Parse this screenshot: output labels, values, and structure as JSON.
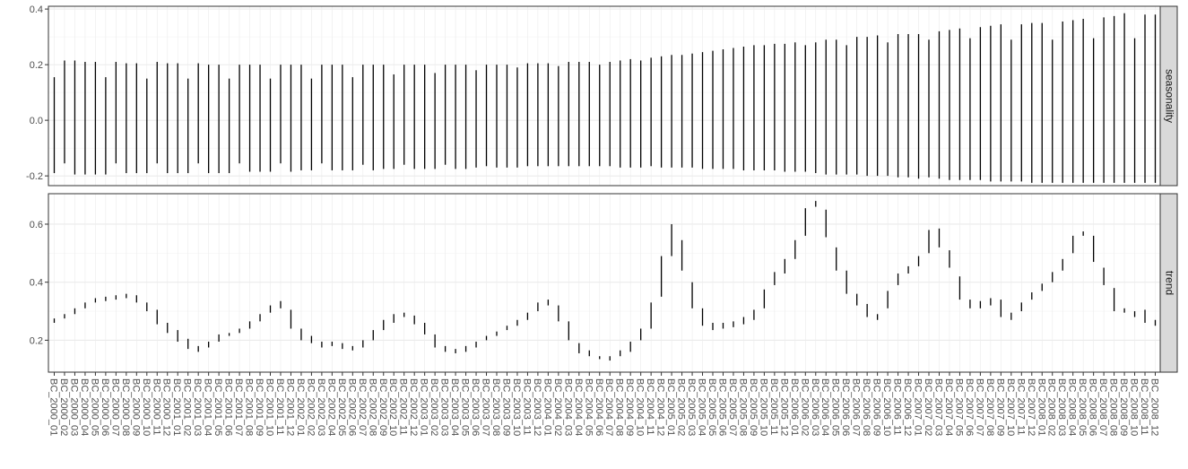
{
  "chart_data": {
    "type": "faceted-range",
    "x_tick_labels": [
      "BC_2000_01",
      "BC_2000_02",
      "BC_2000_03",
      "BC_2000_04",
      "BC_2000_05",
      "BC_2000_06",
      "BC_2000_07",
      "BC_2000_08",
      "BC_2000_09",
      "BC_2000_10",
      "BC_2000_11",
      "BC_2000_12",
      "BC_2001_01",
      "BC_2001_02",
      "BC_2001_03",
      "BC_2001_04",
      "BC_2001_05",
      "BC_2001_06",
      "BC_2001_07",
      "BC_2001_08",
      "BC_2001_09",
      "BC_2001_10",
      "BC_2001_11",
      "BC_2001_12",
      "BC_2002_01",
      "BC_2002_02",
      "BC_2002_03",
      "BC_2002_04",
      "BC_2002_05",
      "BC_2002_06",
      "BC_2002_07",
      "BC_2002_08",
      "BC_2002_09",
      "BC_2002_10",
      "BC_2002_11",
      "BC_2002_12",
      "BC_2003_01",
      "BC_2003_02",
      "BC_2003_03",
      "BC_2003_04",
      "BC_2003_05",
      "BC_2003_06",
      "BC_2003_07",
      "BC_2003_08",
      "BC_2003_09",
      "BC_2003_10",
      "BC_2003_11",
      "BC_2003_12",
      "BC_2004_01",
      "BC_2004_02",
      "BC_2004_03",
      "BC_2004_04",
      "BC_2004_05",
      "BC_2004_06",
      "BC_2004_07",
      "BC_2004_08",
      "BC_2004_09",
      "BC_2004_10",
      "BC_2004_11",
      "BC_2004_12",
      "BC_2005_01",
      "BC_2005_02",
      "BC_2005_03",
      "BC_2005_04",
      "BC_2005_05",
      "BC_2005_06",
      "BC_2005_07",
      "BC_2005_08",
      "BC_2005_09",
      "BC_2005_10",
      "BC_2005_11",
      "BC_2005_12",
      "BC_2006_01",
      "BC_2006_02",
      "BC_2006_03",
      "BC_2006_04",
      "BC_2006_05",
      "BC_2006_06",
      "BC_2006_07",
      "BC_2006_08",
      "BC_2006_09",
      "BC_2006_10",
      "BC_2006_11",
      "BC_2006_12",
      "BC_2007_01",
      "BC_2007_02",
      "BC_2007_03",
      "BC_2007_04",
      "BC_2007_05",
      "BC_2007_06",
      "BC_2007_07",
      "BC_2007_08",
      "BC_2007_09",
      "BC_2007_10",
      "BC_2007_11",
      "BC_2007_12",
      "BC_2008_01",
      "BC_2008_02",
      "BC_2008_03",
      "BC_2008_04",
      "BC_2008_05",
      "BC_2008_06",
      "BC_2008_07",
      "BC_2008_08",
      "BC_2008_09",
      "BC_2008_10",
      "BC_2008_11",
      "BC_2008_12"
    ],
    "panels": [
      {
        "strip_label": "seasonality",
        "ylim": [
          -0.235,
          0.41
        ],
        "yticks": [
          -0.2,
          0.0,
          0.2,
          0.4
        ],
        "ytick_labels": [
          "-0.2",
          "0.0",
          "0.2",
          "0.4"
        ],
        "segments": [
          [
            -0.19,
            0.155
          ],
          [
            -0.155,
            0.215
          ],
          [
            -0.195,
            0.215
          ],
          [
            -0.195,
            0.21
          ],
          [
            -0.195,
            0.21
          ],
          [
            -0.195,
            0.155
          ],
          [
            -0.155,
            0.21
          ],
          [
            -0.19,
            0.205
          ],
          [
            -0.19,
            0.205
          ],
          [
            -0.19,
            0.15
          ],
          [
            -0.155,
            0.21
          ],
          [
            -0.19,
            0.205
          ],
          [
            -0.19,
            0.205
          ],
          [
            -0.19,
            0.15
          ],
          [
            -0.155,
            0.205
          ],
          [
            -0.19,
            0.2
          ],
          [
            -0.19,
            0.2
          ],
          [
            -0.19,
            0.15
          ],
          [
            -0.155,
            0.2
          ],
          [
            -0.185,
            0.2
          ],
          [
            -0.185,
            0.2
          ],
          [
            -0.185,
            0.15
          ],
          [
            -0.155,
            0.2
          ],
          [
            -0.185,
            0.2
          ],
          [
            -0.18,
            0.2
          ],
          [
            -0.18,
            0.15
          ],
          [
            -0.155,
            0.2
          ],
          [
            -0.18,
            0.2
          ],
          [
            -0.18,
            0.2
          ],
          [
            -0.18,
            0.155
          ],
          [
            -0.16,
            0.2
          ],
          [
            -0.18,
            0.2
          ],
          [
            -0.175,
            0.2
          ],
          [
            -0.175,
            0.165
          ],
          [
            -0.16,
            0.2
          ],
          [
            -0.175,
            0.2
          ],
          [
            -0.175,
            0.2
          ],
          [
            -0.175,
            0.17
          ],
          [
            -0.16,
            0.2
          ],
          [
            -0.175,
            0.2
          ],
          [
            -0.175,
            0.2
          ],
          [
            -0.17,
            0.18
          ],
          [
            -0.165,
            0.2
          ],
          [
            -0.17,
            0.2
          ],
          [
            -0.17,
            0.2
          ],
          [
            -0.17,
            0.19
          ],
          [
            -0.165,
            0.205
          ],
          [
            -0.165,
            0.205
          ],
          [
            -0.165,
            0.205
          ],
          [
            -0.165,
            0.195
          ],
          [
            -0.165,
            0.21
          ],
          [
            -0.165,
            0.21
          ],
          [
            -0.165,
            0.21
          ],
          [
            -0.165,
            0.2
          ],
          [
            -0.165,
            0.21
          ],
          [
            -0.17,
            0.215
          ],
          [
            -0.17,
            0.22
          ],
          [
            -0.17,
            0.215
          ],
          [
            -0.165,
            0.225
          ],
          [
            -0.17,
            0.23
          ],
          [
            -0.17,
            0.235
          ],
          [
            -0.17,
            0.235
          ],
          [
            -0.17,
            0.24
          ],
          [
            -0.175,
            0.245
          ],
          [
            -0.175,
            0.25
          ],
          [
            -0.175,
            0.255
          ],
          [
            -0.175,
            0.26
          ],
          [
            -0.18,
            0.265
          ],
          [
            -0.18,
            0.27
          ],
          [
            -0.18,
            0.27
          ],
          [
            -0.18,
            0.275
          ],
          [
            -0.185,
            0.275
          ],
          [
            -0.185,
            0.28
          ],
          [
            -0.185,
            0.27
          ],
          [
            -0.19,
            0.28
          ],
          [
            -0.195,
            0.29
          ],
          [
            -0.195,
            0.29
          ],
          [
            -0.195,
            0.27
          ],
          [
            -0.195,
            0.3
          ],
          [
            -0.2,
            0.3
          ],
          [
            -0.2,
            0.305
          ],
          [
            -0.2,
            0.28
          ],
          [
            -0.205,
            0.31
          ],
          [
            -0.205,
            0.31
          ],
          [
            -0.21,
            0.31
          ],
          [
            -0.205,
            0.29
          ],
          [
            -0.21,
            0.32
          ],
          [
            -0.215,
            0.325
          ],
          [
            -0.215,
            0.33
          ],
          [
            -0.215,
            0.295
          ],
          [
            -0.215,
            0.335
          ],
          [
            -0.22,
            0.34
          ],
          [
            -0.22,
            0.345
          ],
          [
            -0.22,
            0.29
          ],
          [
            -0.22,
            0.345
          ],
          [
            -0.225,
            0.35
          ],
          [
            -0.225,
            0.35
          ],
          [
            -0.225,
            0.29
          ],
          [
            -0.225,
            0.355
          ],
          [
            -0.225,
            0.36
          ],
          [
            -0.225,
            0.365
          ],
          [
            -0.225,
            0.295
          ],
          [
            -0.225,
            0.37
          ],
          [
            -0.225,
            0.375
          ],
          [
            -0.225,
            0.385
          ],
          [
            -0.225,
            0.295
          ],
          [
            -0.225,
            0.38
          ],
          [
            -0.225,
            0.38
          ],
          [
            -0.225,
            0.38
          ],
          [
            -0.225,
            0.3
          ],
          [
            -0.225,
            0.38
          ],
          [
            -0.225,
            0.295
          ]
        ]
      },
      {
        "strip_label": "trend",
        "ylim": [
          0.09,
          0.705
        ],
        "yticks": [
          0.2,
          0.4,
          0.6
        ],
        "ytick_labels": [
          "0.2",
          "0.4",
          "0.6"
        ],
        "segments": [
          [
            0.26,
            0.275
          ],
          [
            0.275,
            0.29
          ],
          [
            0.29,
            0.31
          ],
          [
            0.31,
            0.33
          ],
          [
            0.33,
            0.345
          ],
          [
            0.335,
            0.35
          ],
          [
            0.34,
            0.355
          ],
          [
            0.345,
            0.36
          ],
          [
            0.33,
            0.355
          ],
          [
            0.3,
            0.33
          ],
          [
            0.255,
            0.305
          ],
          [
            0.225,
            0.26
          ],
          [
            0.195,
            0.235
          ],
          [
            0.17,
            0.205
          ],
          [
            0.16,
            0.18
          ],
          [
            0.175,
            0.195
          ],
          [
            0.195,
            0.22
          ],
          [
            0.215,
            0.225
          ],
          [
            0.225,
            0.24
          ],
          [
            0.24,
            0.265
          ],
          [
            0.265,
            0.29
          ],
          [
            0.295,
            0.32
          ],
          [
            0.31,
            0.335
          ],
          [
            0.24,
            0.305
          ],
          [
            0.2,
            0.24
          ],
          [
            0.19,
            0.215
          ],
          [
            0.175,
            0.195
          ],
          [
            0.18,
            0.195
          ],
          [
            0.17,
            0.19
          ],
          [
            0.165,
            0.18
          ],
          [
            0.175,
            0.2
          ],
          [
            0.2,
            0.235
          ],
          [
            0.235,
            0.27
          ],
          [
            0.26,
            0.29
          ],
          [
            0.28,
            0.295
          ],
          [
            0.255,
            0.285
          ],
          [
            0.22,
            0.26
          ],
          [
            0.175,
            0.22
          ],
          [
            0.16,
            0.18
          ],
          [
            0.155,
            0.17
          ],
          [
            0.16,
            0.18
          ],
          [
            0.175,
            0.195
          ],
          [
            0.2,
            0.215
          ],
          [
            0.215,
            0.23
          ],
          [
            0.235,
            0.25
          ],
          [
            0.25,
            0.27
          ],
          [
            0.27,
            0.295
          ],
          [
            0.3,
            0.33
          ],
          [
            0.32,
            0.34
          ],
          [
            0.265,
            0.32
          ],
          [
            0.2,
            0.265
          ],
          [
            0.155,
            0.19
          ],
          [
            0.145,
            0.165
          ],
          [
            0.135,
            0.145
          ],
          [
            0.13,
            0.145
          ],
          [
            0.145,
            0.165
          ],
          [
            0.16,
            0.195
          ],
          [
            0.2,
            0.24
          ],
          [
            0.24,
            0.33
          ],
          [
            0.35,
            0.49
          ],
          [
            0.49,
            0.6
          ],
          [
            0.44,
            0.545
          ],
          [
            0.31,
            0.4
          ],
          [
            0.25,
            0.31
          ],
          [
            0.235,
            0.26
          ],
          [
            0.24,
            0.26
          ],
          [
            0.245,
            0.265
          ],
          [
            0.255,
            0.28
          ],
          [
            0.27,
            0.305
          ],
          [
            0.31,
            0.375
          ],
          [
            0.39,
            0.435
          ],
          [
            0.43,
            0.48
          ],
          [
            0.48,
            0.545
          ],
          [
            0.56,
            0.655
          ],
          [
            0.66,
            0.68
          ],
          [
            0.555,
            0.65
          ],
          [
            0.44,
            0.52
          ],
          [
            0.36,
            0.44
          ],
          [
            0.32,
            0.36
          ],
          [
            0.28,
            0.325
          ],
          [
            0.27,
            0.29
          ],
          [
            0.31,
            0.37
          ],
          [
            0.39,
            0.43
          ],
          [
            0.43,
            0.455
          ],
          [
            0.455,
            0.49
          ],
          [
            0.5,
            0.58
          ],
          [
            0.52,
            0.585
          ],
          [
            0.45,
            0.51
          ],
          [
            0.34,
            0.42
          ],
          [
            0.31,
            0.34
          ],
          [
            0.31,
            0.335
          ],
          [
            0.32,
            0.345
          ],
          [
            0.28,
            0.34
          ],
          [
            0.27,
            0.295
          ],
          [
            0.3,
            0.33
          ],
          [
            0.34,
            0.365
          ],
          [
            0.37,
            0.395
          ],
          [
            0.4,
            0.435
          ],
          [
            0.44,
            0.48
          ],
          [
            0.5,
            0.56
          ],
          [
            0.56,
            0.575
          ],
          [
            0.47,
            0.56
          ],
          [
            0.39,
            0.45
          ],
          [
            0.3,
            0.38
          ],
          [
            0.295,
            0.31
          ],
          [
            0.28,
            0.3
          ],
          [
            0.26,
            0.305
          ],
          [
            0.25,
            0.27
          ],
          [
            0.25,
            0.28
          ],
          [
            0.29,
            0.3
          ],
          [
            0.31,
            0.355
          ],
          [
            0.37,
            0.39
          ],
          [
            0.39,
            0.41
          ],
          [
            0.41,
            0.43
          ],
          [
            0.435,
            0.445
          ],
          [
            0.445,
            0.46
          ],
          [
            0.47,
            0.555
          ],
          [
            0.555,
            0.575
          ],
          [
            0.58,
            0.665
          ],
          [
            0.47,
            0.645
          ],
          [
            0.41,
            0.5
          ],
          [
            0.33,
            0.42
          ],
          [
            0.26,
            0.335
          ],
          [
            0.19,
            0.25
          ],
          [
            0.12,
            0.18
          ]
        ]
      }
    ]
  },
  "colors": {
    "panel_background": "#ffffff",
    "grid_major": "#ebebeb",
    "grid_minor": "#f5f5f5",
    "panel_border": "#333333",
    "strip_fill": "#d9d9d9",
    "segment": "#000000",
    "tick_text": "#4d4d4d",
    "strip_text": "#1a1a1a"
  }
}
